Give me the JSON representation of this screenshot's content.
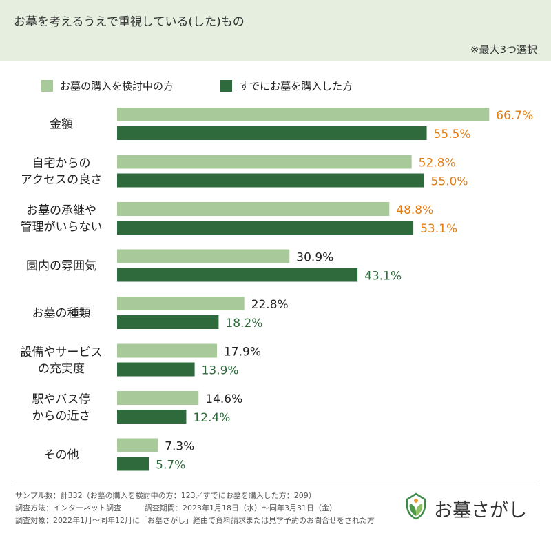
{
  "header": {
    "title": "お墓を考えるうえで重視している(した)もの",
    "note": "※最大3つ選択"
  },
  "chart_data": {
    "type": "bar",
    "orientation": "horizontal",
    "categories": [
      [
        "金額"
      ],
      [
        "自宅からの",
        "アクセスの良さ"
      ],
      [
        "お墓の承継や",
        "管理がいらない"
      ],
      [
        "園内の雰囲気"
      ],
      [
        "お墓の種類"
      ],
      [
        "設備やサービス",
        "の充実度"
      ],
      [
        "駅やバス停",
        "からの近さ"
      ],
      [
        "その他"
      ]
    ],
    "series": [
      {
        "name": "お墓の購入を検討中の方",
        "values": [
          66.7,
          52.8,
          48.8,
          30.9,
          22.8,
          17.9,
          14.6,
          7.3
        ]
      },
      {
        "name": "すでにお墓を購入した方",
        "values": [
          55.5,
          55.0,
          53.1,
          43.1,
          18.2,
          13.9,
          12.4,
          5.7
        ]
      }
    ],
    "labels": [
      [
        "66.7%",
        "52.8%",
        "48.8%",
        "30.9%",
        "22.8%",
        "17.9%",
        "14.6%",
        "7.3%"
      ],
      [
        "55.5%",
        "55.0%",
        "53.1%",
        "43.1%",
        "18.2%",
        "13.9%",
        "12.4%",
        "5.7%"
      ]
    ],
    "xlim": [
      0,
      100
    ],
    "legend": "top-left",
    "colors": {
      "series_light": "#a8c99a",
      "series_dark": "#2f6a3c",
      "label_highlight": "#e07d16",
      "label_normal": "#222222",
      "label_dark": "#2f6a3c"
    },
    "highlight_count": 3
  },
  "footer": {
    "line1": "サンプル数：計332（お墓の購入を検討中の方：123／すでにお墓を購入した方：209）",
    "line2a": "調査方法：インターネット調査",
    "line2b": "調査期間：2023年1月18日（水）〜同年3月31日（金）",
    "line3": "調査対象：2022年1月〜同年12月に「お墓さがし」経由で資料請求または見学予約のお問合せをされた方"
  },
  "logo": {
    "text": "お墓さがし",
    "icon": "leaf-house-icon"
  }
}
